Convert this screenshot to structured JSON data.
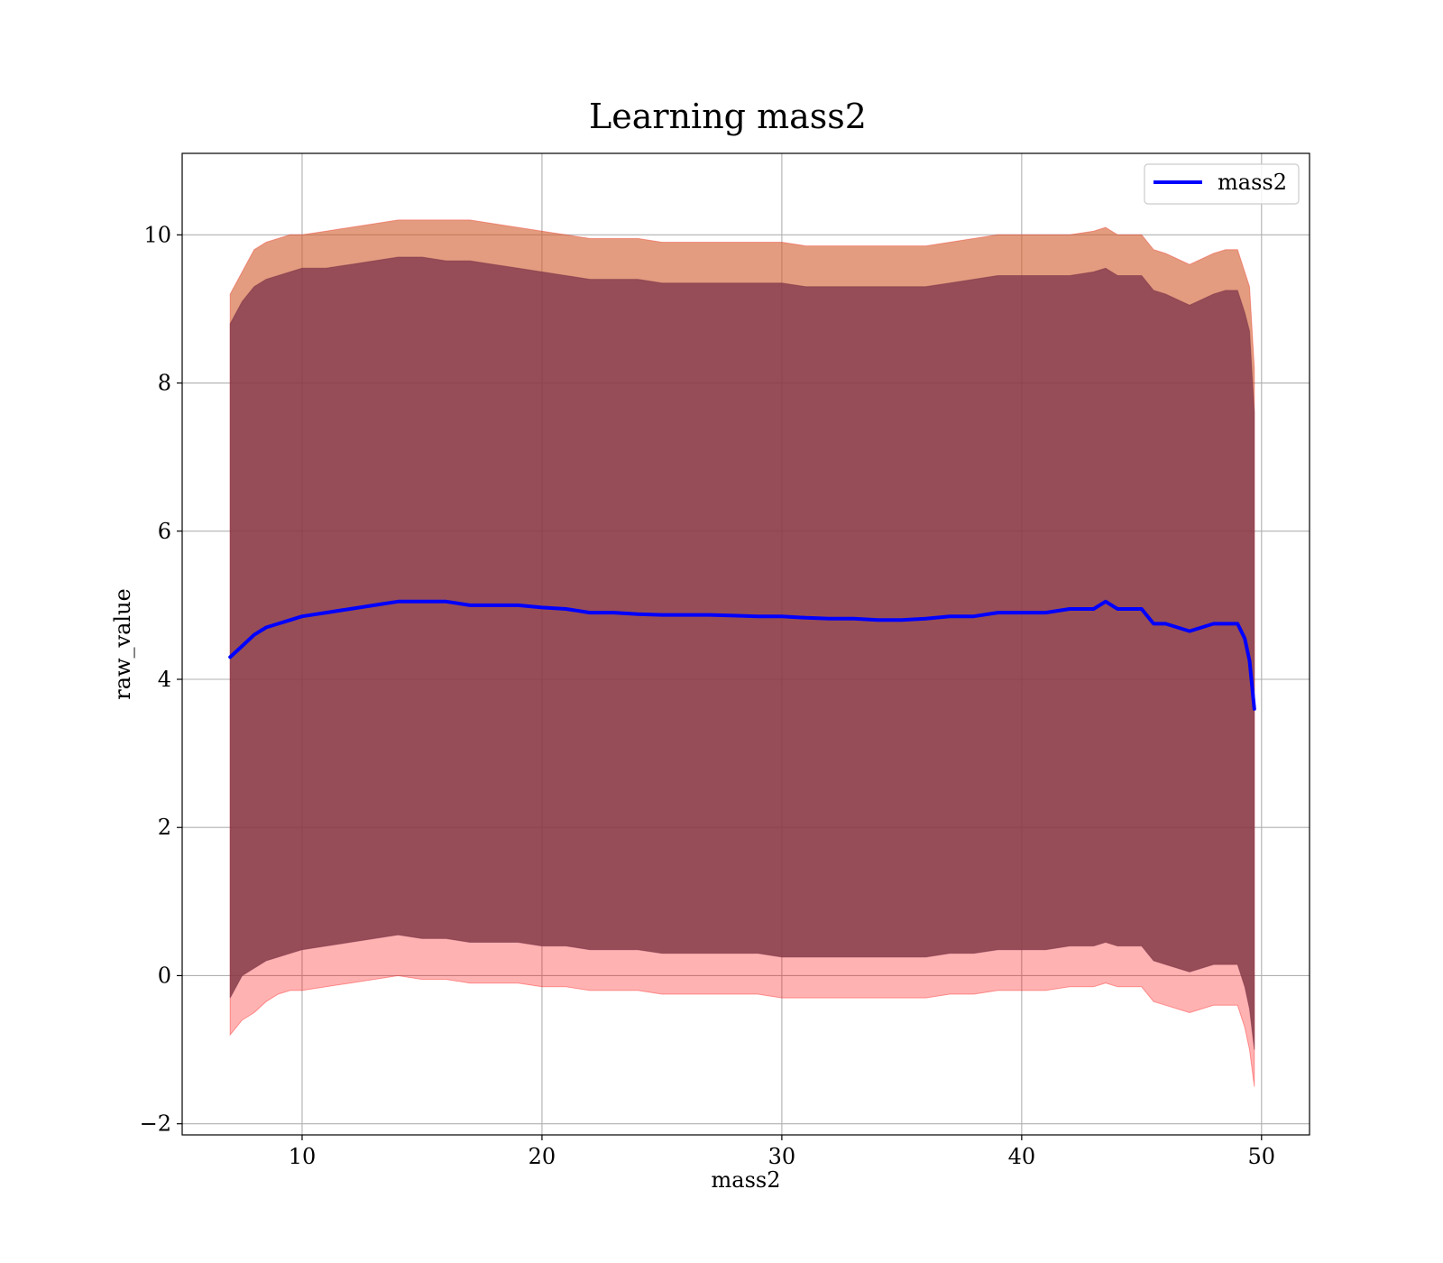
{
  "chart_data": {
    "type": "line",
    "title": "Learning mass2",
    "xlabel": "mass2",
    "ylabel": "raw_value",
    "xlim": [
      5,
      52
    ],
    "ylim": [
      -2.15,
      11.1
    ],
    "xticks": [
      10,
      20,
      30,
      40,
      50
    ],
    "yticks": [
      -2,
      0,
      2,
      4,
      6,
      8,
      10
    ],
    "grid": true,
    "legend_position": "top-right",
    "colors": {
      "line": "#0000ff",
      "band_red": "#ff0000",
      "band_inner": "#7a2f48",
      "band_orange": "#c08040"
    },
    "series": [
      {
        "name": "mass2",
        "x": [
          7.0,
          7.5,
          8.0,
          8.5,
          9.0,
          9.5,
          10.0,
          11.0,
          12.0,
          13.0,
          14.0,
          15.0,
          16.0,
          17.0,
          18.0,
          19.0,
          20.0,
          21.0,
          22.0,
          23.0,
          24.0,
          25.0,
          26.0,
          27.0,
          28.0,
          29.0,
          30.0,
          31.0,
          32.0,
          33.0,
          34.0,
          35.0,
          36.0,
          37.0,
          38.0,
          39.0,
          40.0,
          41.0,
          42.0,
          43.0,
          43.5,
          44.0,
          45.0,
          45.5,
          46.0,
          47.0,
          48.0,
          48.5,
          49.0,
          49.3,
          49.5,
          49.7
        ],
        "y": [
          4.3,
          4.45,
          4.6,
          4.7,
          4.75,
          4.8,
          4.85,
          4.9,
          4.95,
          5.0,
          5.05,
          5.05,
          5.05,
          5.0,
          5.0,
          5.0,
          4.97,
          4.95,
          4.9,
          4.9,
          4.88,
          4.87,
          4.87,
          4.87,
          4.86,
          4.85,
          4.85,
          4.83,
          4.82,
          4.82,
          4.8,
          4.8,
          4.82,
          4.85,
          4.85,
          4.9,
          4.9,
          4.9,
          4.95,
          4.95,
          5.05,
          4.95,
          4.95,
          4.75,
          4.75,
          4.65,
          4.75,
          4.75,
          4.75,
          4.55,
          4.25,
          3.6
        ],
        "band_red_upper": [
          9.2,
          9.5,
          9.8,
          9.9,
          9.95,
          10.0,
          10.0,
          10.05,
          10.1,
          10.15,
          10.2,
          10.2,
          10.2,
          10.2,
          10.15,
          10.1,
          10.05,
          10.0,
          9.95,
          9.95,
          9.95,
          9.9,
          9.9,
          9.9,
          9.9,
          9.9,
          9.9,
          9.85,
          9.85,
          9.85,
          9.85,
          9.85,
          9.85,
          9.9,
          9.95,
          10.0,
          10.0,
          10.0,
          10.0,
          10.05,
          10.1,
          10.0,
          10.0,
          9.8,
          9.75,
          9.6,
          9.75,
          9.8,
          9.8,
          9.5,
          9.3,
          8.2
        ],
        "band_red_lower": [
          -0.8,
          -0.6,
          -0.5,
          -0.35,
          -0.25,
          -0.2,
          -0.2,
          -0.15,
          -0.1,
          -0.05,
          0.0,
          -0.05,
          -0.05,
          -0.1,
          -0.1,
          -0.1,
          -0.15,
          -0.15,
          -0.2,
          -0.2,
          -0.2,
          -0.25,
          -0.25,
          -0.25,
          -0.25,
          -0.25,
          -0.3,
          -0.3,
          -0.3,
          -0.3,
          -0.3,
          -0.3,
          -0.3,
          -0.25,
          -0.25,
          -0.2,
          -0.2,
          -0.2,
          -0.15,
          -0.15,
          -0.1,
          -0.15,
          -0.15,
          -0.35,
          -0.4,
          -0.5,
          -0.4,
          -0.4,
          -0.4,
          -0.7,
          -1.0,
          -1.5
        ],
        "band_inner_upper": [
          8.8,
          9.1,
          9.3,
          9.4,
          9.45,
          9.5,
          9.55,
          9.55,
          9.6,
          9.65,
          9.7,
          9.7,
          9.65,
          9.65,
          9.6,
          9.55,
          9.5,
          9.45,
          9.4,
          9.4,
          9.4,
          9.35,
          9.35,
          9.35,
          9.35,
          9.35,
          9.35,
          9.3,
          9.3,
          9.3,
          9.3,
          9.3,
          9.3,
          9.35,
          9.4,
          9.45,
          9.45,
          9.45,
          9.45,
          9.5,
          9.55,
          9.45,
          9.45,
          9.25,
          9.2,
          9.05,
          9.2,
          9.25,
          9.25,
          8.95,
          8.7,
          7.6
        ],
        "band_inner_lower": [
          -0.3,
          0.0,
          0.1,
          0.2,
          0.25,
          0.3,
          0.35,
          0.4,
          0.45,
          0.5,
          0.55,
          0.5,
          0.5,
          0.45,
          0.45,
          0.45,
          0.4,
          0.4,
          0.35,
          0.35,
          0.35,
          0.3,
          0.3,
          0.3,
          0.3,
          0.3,
          0.25,
          0.25,
          0.25,
          0.25,
          0.25,
          0.25,
          0.25,
          0.3,
          0.3,
          0.35,
          0.35,
          0.35,
          0.4,
          0.4,
          0.45,
          0.4,
          0.4,
          0.2,
          0.15,
          0.05,
          0.15,
          0.15,
          0.15,
          -0.15,
          -0.45,
          -1.0
        ]
      }
    ]
  }
}
